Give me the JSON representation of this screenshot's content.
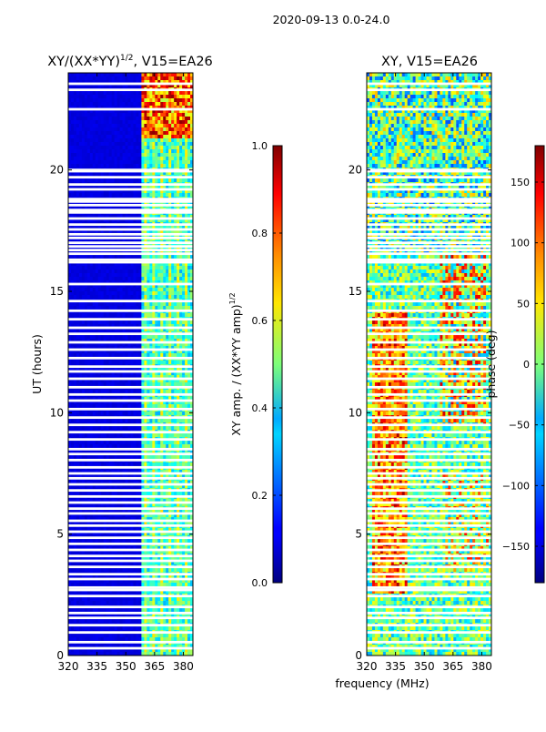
{
  "figure": {
    "suptitle": "2020-09-13 0.0-24.0",
    "xlabel_shared": "frequency (MHz)"
  },
  "chart_data": [
    {
      "type": "heatmap",
      "title_main": "XY/(XX*YY)",
      "title_sup": "1/2",
      "title_rest": ", V15=EA26",
      "ylabel": "UT (hours)",
      "xlim": [
        320,
        385
      ],
      "ylim": [
        0,
        24
      ],
      "xticks": [
        {
          "value": 320,
          "label": "320"
        },
        {
          "value": 335,
          "label": "335"
        },
        {
          "value": 350,
          "label": "350"
        },
        {
          "value": 365,
          "label": "365"
        },
        {
          "value": 380,
          "label": "380"
        }
      ],
      "yticks": [
        {
          "value": 0,
          "label": "0"
        },
        {
          "value": 5,
          "label": "5"
        },
        {
          "value": 10,
          "label": "10"
        },
        {
          "value": 15,
          "label": "15"
        },
        {
          "value": 20,
          "label": "20"
        }
      ],
      "colorscale": "jet",
      "colorbar": {
        "label_main": "XY amp. / (XX*YY amp)",
        "label_sup": "1/2",
        "range": [
          0.0,
          1.0
        ],
        "ticks": [
          {
            "value": 0.0,
            "label": "0.0"
          },
          {
            "value": 0.2,
            "label": "0.2"
          },
          {
            "value": 0.4,
            "label": "0.4"
          },
          {
            "value": 0.6,
            "label": "0.6"
          },
          {
            "value": 0.8,
            "label": "0.8"
          },
          {
            "value": 1.0,
            "label": "1.0"
          }
        ]
      },
      "flagged_ut_hours": [
        23.55,
        23.3,
        22.5,
        20.0,
        19.95,
        19.7,
        19.4,
        19.2,
        18.8,
        18.7,
        18.55,
        18.35,
        18.25,
        18.0,
        17.75,
        17.55,
        17.35,
        17.2,
        17.0,
        16.85,
        16.7,
        16.55,
        16.3,
        16.2,
        15.3,
        14.6,
        14.2,
        13.85,
        13.5,
        13.25,
        12.9,
        12.6,
        12.25,
        11.9,
        11.7,
        11.4,
        11.05,
        10.75,
        10.5,
        10.15,
        9.8,
        9.5,
        9.2,
        8.9,
        8.5,
        8.3,
        8.05,
        7.75,
        7.5,
        7.3,
        7.05,
        6.8,
        6.55,
        6.3,
        6.05,
        5.85,
        5.55,
        5.35,
        5.1,
        4.85,
        4.6,
        4.35,
        4.1,
        3.9,
        3.65,
        3.35,
        3.15,
        2.8,
        2.7,
        2.45,
        2.0,
        1.75,
        1.55,
        1.25,
        0.95,
        0.55,
        0.3
      ],
      "active_band_mhz": [
        358,
        384
      ],
      "note": "amplitude ~0 below 358 MHz; ~0.3-0.6 in 358-384 MHz band, higher (~0.8-1.0) near 21.5-24 h"
    },
    {
      "type": "heatmap",
      "title": "XY, V15=EA26",
      "xlim": [
        320,
        385
      ],
      "ylim": [
        0,
        24
      ],
      "xticks": [
        {
          "value": 320,
          "label": "320"
        },
        {
          "value": 335,
          "label": "335"
        },
        {
          "value": 350,
          "label": "350"
        },
        {
          "value": 365,
          "label": "365"
        },
        {
          "value": 380,
          "label": "380"
        }
      ],
      "yticks": [
        {
          "value": 0,
          "label": "0"
        },
        {
          "value": 5,
          "label": "5"
        },
        {
          "value": 10,
          "label": "10"
        },
        {
          "value": 15,
          "label": "15"
        },
        {
          "value": 20,
          "label": "20"
        }
      ],
      "colorscale": "jet",
      "colorbar": {
        "label": "phase (deg)",
        "range": [
          -180,
          180
        ],
        "ticks": [
          {
            "value": -150,
            "label": "−150"
          },
          {
            "value": -100,
            "label": "−100"
          },
          {
            "value": -50,
            "label": "−50"
          },
          {
            "value": 0,
            "label": "0"
          },
          {
            "value": 50,
            "label": "50"
          },
          {
            "value": 100,
            "label": "100"
          },
          {
            "value": 150,
            "label": "150"
          }
        ]
      },
      "flagged_ut_hours": [
        23.55,
        23.3,
        22.5,
        20.0,
        19.95,
        19.7,
        19.4,
        19.2,
        18.8,
        18.7,
        18.55,
        18.35,
        18.25,
        18.0,
        17.75,
        17.55,
        17.35,
        17.2,
        17.0,
        16.85,
        16.7,
        16.55,
        16.3,
        16.2,
        15.3,
        14.6,
        14.2,
        13.85,
        13.5,
        13.25,
        12.9,
        12.6,
        12.25,
        11.9,
        11.7,
        11.4,
        11.05,
        10.75,
        10.5,
        10.15,
        9.8,
        9.5,
        9.2,
        8.9,
        8.5,
        8.3,
        8.05,
        7.75,
        7.5,
        7.3,
        7.05,
        6.8,
        6.55,
        6.3,
        6.05,
        5.85,
        5.55,
        5.35,
        5.1,
        4.85,
        4.6,
        4.35,
        4.1,
        3.9,
        3.65,
        3.35,
        3.15,
        2.8,
        2.7,
        2.45,
        2.0,
        1.75,
        1.55,
        1.25,
        0.95,
        0.55,
        0.3
      ],
      "note": "phase noise mostly near 0 deg; warm (~60-120 deg) patches 325-340 MHz at 3-14 h, red (~100 deg) patches 360-380 MHz at 10-16 h"
    }
  ]
}
